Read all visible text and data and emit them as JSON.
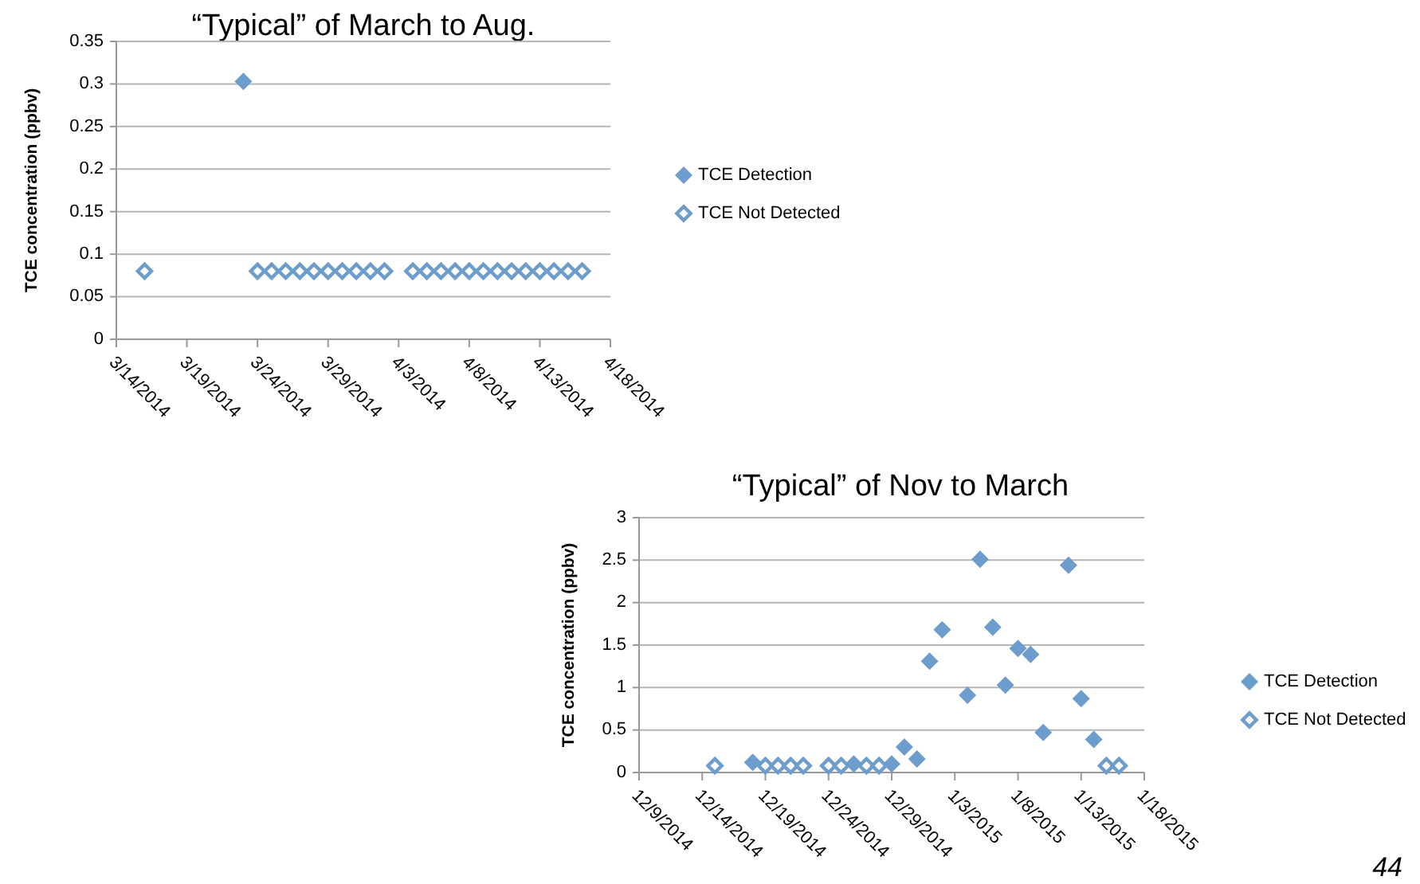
{
  "chart_data": [
    {
      "type": "scatter",
      "title": "“Typical” of March to Aug.",
      "ylabel": "TCE concentration (ppbv)",
      "xlim": [
        "2014-03-14",
        "2014-04-18"
      ],
      "xticks": [
        {
          "value": "2014-03-14",
          "label": "3/14/2014"
        },
        {
          "value": "2014-03-19",
          "label": "3/19/2014"
        },
        {
          "value": "2014-03-24",
          "label": "3/24/2014"
        },
        {
          "value": "2014-03-29",
          "label": "3/29/2014"
        },
        {
          "value": "2014-04-03",
          "label": "4/3/2014"
        },
        {
          "value": "2014-04-08",
          "label": "4/8/2014"
        },
        {
          "value": "2014-04-13",
          "label": "4/13/2014"
        },
        {
          "value": "2014-04-18",
          "label": "4/18/2014"
        }
      ],
      "ylim": [
        0,
        0.35
      ],
      "yticks": [
        0,
        0.05,
        0.1,
        0.15,
        0.2,
        0.25,
        0.3,
        0.35
      ],
      "grid": "y",
      "legend": "right",
      "series": [
        {
          "name": "TCE Detection",
          "color": "#6d9dcd",
          "marker": "diamond",
          "x": [
            "2014-03-23"
          ],
          "values": [
            0.303
          ]
        },
        {
          "name": "TCE Not Detected",
          "color": "#6d9dcd",
          "marker": "diamond-open",
          "x": [
            "2014-03-16",
            "2014-03-24",
            "2014-03-25",
            "2014-03-26",
            "2014-03-27",
            "2014-03-28",
            "2014-03-29",
            "2014-03-30",
            "2014-03-31",
            "2014-04-01",
            "2014-04-02",
            "2014-04-04",
            "2014-04-05",
            "2014-04-06",
            "2014-04-07",
            "2014-04-08",
            "2014-04-09",
            "2014-04-10",
            "2014-04-11",
            "2014-04-12",
            "2014-04-13",
            "2014-04-14",
            "2014-04-15",
            "2014-04-16"
          ],
          "values": [
            0.08,
            0.08,
            0.08,
            0.08,
            0.08,
            0.08,
            0.08,
            0.08,
            0.08,
            0.08,
            0.08,
            0.08,
            0.08,
            0.08,
            0.08,
            0.08,
            0.08,
            0.08,
            0.08,
            0.08,
            0.08,
            0.08,
            0.08,
            0.08
          ]
        }
      ]
    },
    {
      "type": "scatter",
      "title": "“Typical” of Nov to March",
      "ylabel": "TCE concentration (ppbv)",
      "xlim": [
        "2014-12-09",
        "2015-01-18"
      ],
      "xticks": [
        {
          "value": "2014-12-09",
          "label": "12/9/2014"
        },
        {
          "value": "2014-12-14",
          "label": "12/14/2014"
        },
        {
          "value": "2014-12-19",
          "label": "12/19/2014"
        },
        {
          "value": "2014-12-24",
          "label": "12/24/2014"
        },
        {
          "value": "2014-12-29",
          "label": "12/29/2014"
        },
        {
          "value": "2015-01-03",
          "label": "1/3/2015"
        },
        {
          "value": "2015-01-08",
          "label": "1/8/2015"
        },
        {
          "value": "2015-01-13",
          "label": "1/13/2015"
        },
        {
          "value": "2015-01-18",
          "label": "1/18/2015"
        }
      ],
      "ylim": [
        0,
        3
      ],
      "yticks": [
        0,
        0.5,
        1,
        1.5,
        2,
        2.5,
        3
      ],
      "grid": "y",
      "legend": "right",
      "annotations": [
        "44"
      ],
      "series": [
        {
          "name": "TCE Detection",
          "color": "#6d9dcd",
          "marker": "diamond",
          "x": [
            "2014-12-18",
            "2014-12-26",
            "2014-12-29",
            "2014-12-30",
            "2014-12-31",
            "2015-01-01",
            "2015-01-02",
            "2015-01-04",
            "2015-01-05",
            "2015-01-06",
            "2015-01-07",
            "2015-01-08",
            "2015-01-09",
            "2015-01-10",
            "2015-01-12",
            "2015-01-13",
            "2015-01-14"
          ],
          "values": [
            0.12,
            0.1,
            0.1,
            0.3,
            0.16,
            1.31,
            1.68,
            0.91,
            2.51,
            1.71,
            1.03,
            1.46,
            1.39,
            0.47,
            2.44,
            0.87,
            0.39
          ]
        },
        {
          "name": "TCE Not Detected",
          "color": "#6d9dcd",
          "marker": "diamond-open",
          "x": [
            "2014-12-15",
            "2014-12-19",
            "2014-12-20",
            "2014-12-21",
            "2014-12-22",
            "2014-12-24",
            "2014-12-25",
            "2014-12-27",
            "2014-12-28",
            "2015-01-15",
            "2015-01-16"
          ],
          "values": [
            0.08,
            0.08,
            0.08,
            0.08,
            0.08,
            0.08,
            0.08,
            0.08,
            0.08,
            0.08,
            0.08
          ]
        }
      ]
    }
  ]
}
